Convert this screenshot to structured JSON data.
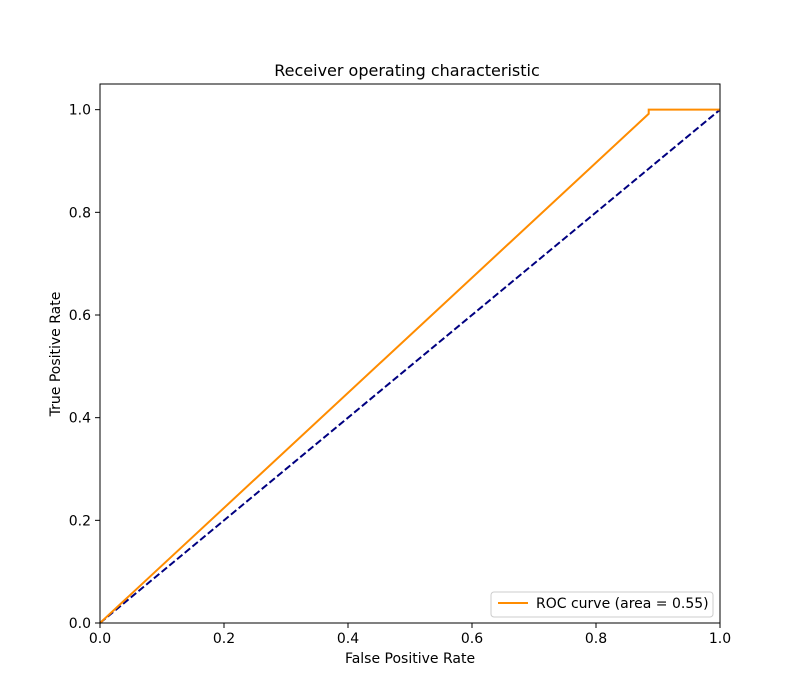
{
  "chart_data": {
    "type": "line",
    "title": "Receiver operating characteristic",
    "xlabel": "False Positive Rate",
    "ylabel": "True Positive Rate",
    "xlim": [
      0.0,
      1.0
    ],
    "ylim": [
      0.0,
      1.05
    ],
    "xticks": [
      "0.0",
      "0.2",
      "0.4",
      "0.6",
      "0.8",
      "1.0"
    ],
    "yticks": [
      "0.0",
      "0.2",
      "0.4",
      "0.6",
      "0.8",
      "1.0"
    ],
    "grid": false,
    "legend_position": "lower-right",
    "series": [
      {
        "name": "ROC curve (area = 0.55)",
        "color": "#ff8c00",
        "style": "solid",
        "x": [
          0.0,
          0.885,
          0.885,
          1.0
        ],
        "y": [
          0.0,
          0.992,
          1.0,
          1.0
        ]
      },
      {
        "color": "#000080",
        "style": "dashed",
        "x": [
          0.0,
          1.0
        ],
        "y": [
          0.0,
          1.0
        ]
      }
    ]
  }
}
